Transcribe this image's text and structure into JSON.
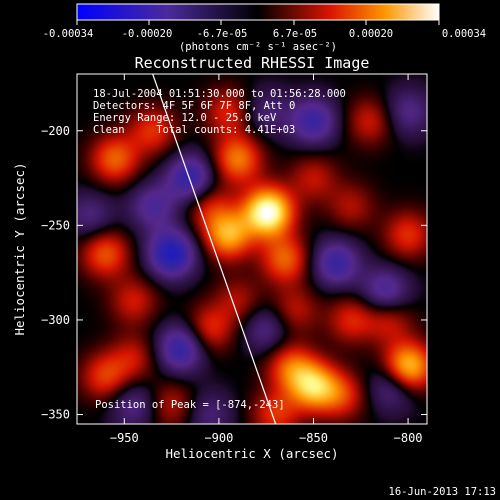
{
  "colorbar": {
    "ticks": [
      "-0.00034",
      "-0.00020",
      "-6.7e-05",
      "6.7e-05",
      "0.00020",
      "0.00034"
    ],
    "unit_label": "(photons cm⁻² s⁻¹ asec⁻²)"
  },
  "chart_data": {
    "type": "heatmap",
    "title": "Reconstructed RHESSI Image",
    "xlabel": "Heliocentric X (arcsec)",
    "ylabel": "Heliocentric Y (arcsec)",
    "xlim": [
      -975,
      -790
    ],
    "ylim": [
      -355,
      -170
    ],
    "xticks": [
      -950,
      -900,
      -850,
      -800
    ],
    "yticks": [
      -200,
      -250,
      -300,
      -350
    ],
    "color_range": [
      -0.00034,
      0.00034
    ],
    "colormap": "rhessi-blue-purple-red-yellow-white",
    "limb_line": [
      [
        -935,
        -170
      ],
      [
        -870,
        -355
      ]
    ],
    "peak_position": [
      -874,
      -243
    ],
    "annotations": [
      "18-Jul-2004 01:51:30.000 to 01:56:28.000",
      "Detectors: 4F 5F 6F 7F 8F, Att 0",
      "Energy Range: 12.0 - 25.0 keV",
      "Clean     Total counts: 4.41E+03"
    ],
    "peak_label": "Position of Peak = [-874,-243]",
    "blobs": [
      {
        "x": -874,
        "y": -243,
        "amp": 0.00034
      },
      {
        "x": -895,
        "y": -255,
        "amp": 0.00022
      },
      {
        "x": -890,
        "y": -215,
        "amp": 0.00018
      },
      {
        "x": -865,
        "y": -268,
        "amp": 0.00016
      },
      {
        "x": -955,
        "y": -215,
        "amp": 0.00016
      },
      {
        "x": -935,
        "y": -200,
        "amp": 0.00012
      },
      {
        "x": -960,
        "y": -265,
        "amp": 0.00015
      },
      {
        "x": -945,
        "y": -290,
        "amp": 0.0001
      },
      {
        "x": -960,
        "y": -330,
        "amp": 0.00013
      },
      {
        "x": -945,
        "y": -320,
        "amp": 9e-05
      },
      {
        "x": -925,
        "y": -345,
        "amp": 9e-05
      },
      {
        "x": -905,
        "y": -240,
        "amp": 0.0001
      },
      {
        "x": -850,
        "y": -335,
        "amp": 0.00024
      },
      {
        "x": -862,
        "y": -325,
        "amp": 0.00015
      },
      {
        "x": -835,
        "y": -340,
        "amp": 0.00012
      },
      {
        "x": -800,
        "y": -325,
        "amp": 0.00026
      },
      {
        "x": -830,
        "y": -300,
        "amp": 0.00011
      },
      {
        "x": -810,
        "y": -300,
        "amp": 0.0001
      },
      {
        "x": -800,
        "y": -255,
        "amp": 0.00012
      },
      {
        "x": -830,
        "y": -240,
        "amp": 8e-05
      },
      {
        "x": -850,
        "y": -225,
        "amp": 9e-05
      },
      {
        "x": -820,
        "y": -195,
        "amp": 0.0001
      },
      {
        "x": -905,
        "y": -305,
        "amp": 0.00012
      },
      {
        "x": -890,
        "y": -290,
        "amp": 8e-05
      },
      {
        "x": -860,
        "y": -295,
        "amp": 9e-05
      },
      {
        "x": -870,
        "y": -350,
        "amp": 0.00012
      },
      {
        "x": -895,
        "y": -190,
        "amp": 0.00011
      },
      {
        "x": -915,
        "y": -225,
        "amp": -0.00018
      },
      {
        "x": -925,
        "y": -265,
        "amp": -0.00022
      },
      {
        "x": -920,
        "y": -315,
        "amp": -0.00018
      },
      {
        "x": -935,
        "y": -240,
        "amp": -0.00012
      },
      {
        "x": -850,
        "y": -195,
        "amp": -0.00016
      },
      {
        "x": -838,
        "y": -270,
        "amp": -0.00016
      },
      {
        "x": -812,
        "y": -285,
        "amp": -0.00014
      },
      {
        "x": -808,
        "y": -335,
        "amp": -0.00012
      },
      {
        "x": -875,
        "y": -305,
        "amp": -0.0001
      },
      {
        "x": -945,
        "y": -345,
        "amp": -0.0001
      },
      {
        "x": -968,
        "y": -245,
        "amp": -9e-05
      },
      {
        "x": -800,
        "y": -190,
        "amp": -0.0001
      },
      {
        "x": -875,
        "y": -190,
        "amp": -8e-05
      },
      {
        "x": -905,
        "y": -350,
        "amp": -8e-05
      }
    ]
  },
  "footer": {
    "timestamp": "16-Jun-2013 17:13"
  }
}
